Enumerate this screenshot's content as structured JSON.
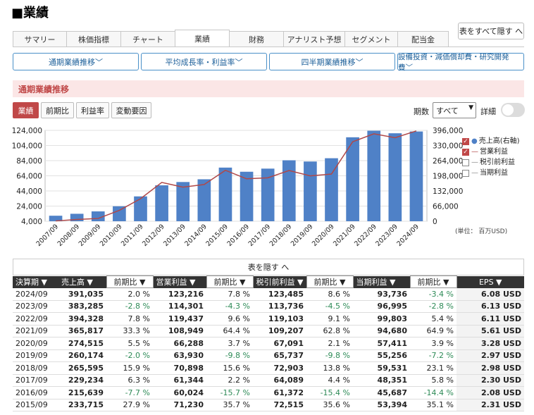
{
  "page": {
    "title": "■業績"
  },
  "tabs": [
    "サマリー",
    "株価指標",
    "チャート",
    "業績",
    "財務",
    "アナリスト予想",
    "セグメント",
    "配当金"
  ],
  "hide_all_label": "表をすべて隠す へ",
  "subnav": [
    "通期業績推移﹀",
    "平均成長率・利益率﹀",
    "四半期業績推移﹀",
    "設備投資・減価償却費・研究開発費﹀"
  ],
  "section_title": "通期業績推移",
  "metric_buttons": [
    "業績",
    "前期比",
    "利益率",
    "変動要因"
  ],
  "period": {
    "label": "期数",
    "value": "すべて",
    "arrow": "▼"
  },
  "detail_label": "詳細",
  "chart_data": {
    "type": "bar+line",
    "categories": [
      "2007/09",
      "2008/09",
      "2009/09",
      "2010/09",
      "2011/09",
      "2012/09",
      "2013/09",
      "2014/09",
      "2015/09",
      "2016/09",
      "2017/09",
      "2018/09",
      "2019/09",
      "2020/09",
      "2021/09",
      "2022/09",
      "2023/09",
      "2024/09"
    ],
    "series": [
      {
        "name": "売上高(右軸)",
        "type": "bar",
        "axis": "right",
        "color": "#4f81c7",
        "values": [
          24006,
          32479,
          42905,
          65225,
          108249,
          156508,
          170910,
          182795,
          233715,
          215639,
          229234,
          265595,
          260174,
          274515,
          365817,
          394328,
          383285,
          391035
        ]
      },
      {
        "name": "営業利益",
        "type": "line",
        "axis": "left",
        "color": "#b04848",
        "values": [
          4407,
          6275,
          7658,
          18385,
          33790,
          55241,
          48999,
          52503,
          71230,
          60024,
          61344,
          70898,
          63930,
          66288,
          108949,
          119437,
          114301,
          123216
        ]
      }
    ],
    "left_axis": {
      "ylim": [
        4000,
        124000
      ],
      "ticks": [
        "4,000",
        "24,000",
        "44,000",
        "64,000",
        "84,000",
        "104,000",
        "124,000"
      ]
    },
    "right_axis": {
      "ylim": [
        0,
        396000
      ],
      "ticks": [
        "0",
        "66,000",
        "132,000",
        "198,000",
        "264,000",
        "330,000",
        "396,000"
      ]
    },
    "grid": true,
    "legend_placement": "right"
  },
  "legend": [
    {
      "label": "売上高(右軸)",
      "checked": true,
      "color": "#4f81c7",
      "marker": "●"
    },
    {
      "label": "営業利益",
      "checked": true,
      "color": "#b04848",
      "marker": "—"
    },
    {
      "label": "税引前利益",
      "checked": false,
      "color": "#888888",
      "marker": "—"
    },
    {
      "label": "当期利益",
      "checked": false,
      "color": "#888888",
      "marker": "—"
    }
  ],
  "unit_label": "(単位： 百万USD)",
  "table": {
    "toggle_label": "表を隠す へ",
    "headers": [
      "決算期 ▼",
      "売上高 ▼",
      "営業利益 ▼",
      "税引前利益 ▼",
      "当期利益 ▼",
      "EPS ▼"
    ],
    "sub_header": "前期比 ▼",
    "rows": [
      [
        "2024/09",
        "391,035",
        "2.0 %",
        "123,216",
        "7.8 %",
        "123,485",
        "8.6 %",
        "93,736",
        "-3.4 %",
        "6.08 USD"
      ],
      [
        "2023/09",
        "383,285",
        "-2.8 %",
        "114,301",
        "-4.3 %",
        "113,736",
        "-4.5 %",
        "96,995",
        "-2.8 %",
        "6.13 USD"
      ],
      [
        "2022/09",
        "394,328",
        "7.8 %",
        "119,437",
        "9.6 %",
        "119,103",
        "9.1 %",
        "99,803",
        "5.4 %",
        "6.11 USD"
      ],
      [
        "2021/09",
        "365,817",
        "33.3 %",
        "108,949",
        "64.4 %",
        "109,207",
        "62.8 %",
        "94,680",
        "64.9 %",
        "5.61 USD"
      ],
      [
        "2020/09",
        "274,515",
        "5.5 %",
        "66,288",
        "3.7 %",
        "67,091",
        "2.1 %",
        "57,411",
        "3.9 %",
        "3.28 USD"
      ],
      [
        "2019/09",
        "260,174",
        "-2.0 %",
        "63,930",
        "-9.8 %",
        "65,737",
        "-9.8 %",
        "55,256",
        "-7.2 %",
        "2.97 USD"
      ],
      [
        "2018/09",
        "265,595",
        "15.9 %",
        "70,898",
        "15.6 %",
        "72,903",
        "13.8 %",
        "59,531",
        "23.1 %",
        "2.98 USD"
      ],
      [
        "2017/09",
        "229,234",
        "6.3 %",
        "61,344",
        "2.2 %",
        "64,089",
        "4.4 %",
        "48,351",
        "5.8 %",
        "2.30 USD"
      ],
      [
        "2016/09",
        "215,639",
        "-7.7 %",
        "60,024",
        "-15.7 %",
        "61,372",
        "-15.4 %",
        "45,687",
        "-14.4 %",
        "2.08 USD"
      ],
      [
        "2015/09",
        "233,715",
        "27.9 %",
        "71,230",
        "35.7 %",
        "72,515",
        "35.6 %",
        "53,394",
        "35.1 %",
        "2.31 USD"
      ]
    ]
  }
}
